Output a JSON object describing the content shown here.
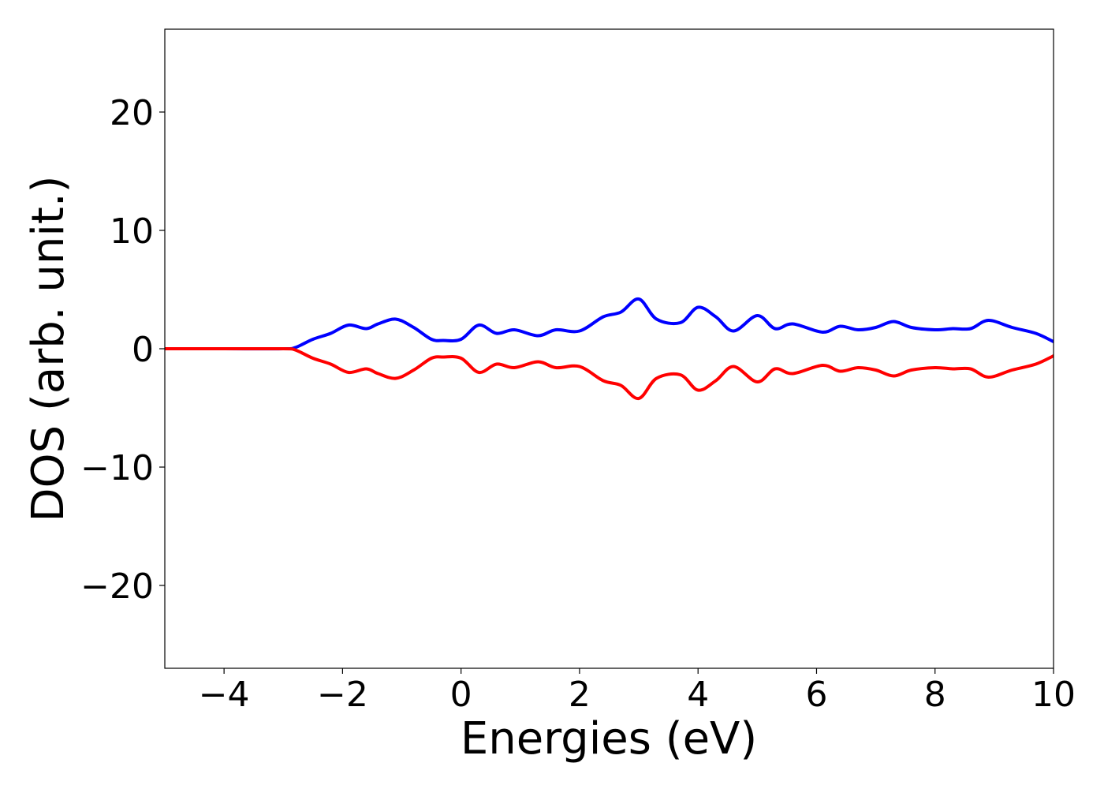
{
  "chart_data": {
    "type": "line",
    "xlabel": "Energies (eV)",
    "ylabel": "DOS (arb. unit.)",
    "xlim": [
      -5,
      10
    ],
    "ylim": [
      -27,
      27
    ],
    "xticks": [
      -4,
      -2,
      0,
      2,
      4,
      6,
      8,
      10
    ],
    "xtick_labels": [
      "−4",
      "−2",
      "0",
      "2",
      "4",
      "6",
      "8",
      "10"
    ],
    "yticks": [
      20,
      10,
      0,
      -10,
      -20
    ],
    "ytick_labels": [
      "20",
      "10",
      "0",
      "−10",
      "−20"
    ],
    "grid": false,
    "series": [
      {
        "color": "#0000ff",
        "x": [
          -5,
          -4,
          -3,
          -2.8,
          -2.5,
          -2.2,
          -1.9,
          -1.6,
          -1.4,
          -1.1,
          -0.8,
          -0.5,
          -0.3,
          0,
          0.3,
          0.6,
          0.9,
          1.3,
          1.6,
          2,
          2.4,
          2.7,
          3,
          3.3,
          3.7,
          4,
          4.3,
          4.6,
          5,
          5.3,
          5.6,
          6.1,
          6.4,
          6.7,
          7,
          7.3,
          7.6,
          8,
          8.3,
          8.6,
          8.9,
          9.3,
          9.7,
          10
        ],
        "y": [
          0,
          0,
          0,
          0.1,
          0.8,
          1.3,
          2.0,
          1.7,
          2.1,
          2.5,
          1.8,
          0.8,
          0.7,
          0.8,
          2.0,
          1.3,
          1.6,
          1.1,
          1.6,
          1.5,
          2.7,
          3.1,
          4.2,
          2.5,
          2.2,
          3.5,
          2.7,
          1.5,
          2.8,
          1.7,
          2.1,
          1.4,
          1.9,
          1.6,
          1.8,
          2.3,
          1.8,
          1.6,
          1.7,
          1.7,
          2.4,
          1.8,
          1.3,
          0.6
        ]
      },
      {
        "color": "#ff0000",
        "x": [
          -5,
          -4,
          -3,
          -2.8,
          -2.5,
          -2.2,
          -1.9,
          -1.6,
          -1.4,
          -1.1,
          -0.8,
          -0.5,
          -0.3,
          0,
          0.3,
          0.6,
          0.9,
          1.3,
          1.6,
          2,
          2.4,
          2.7,
          3,
          3.3,
          3.7,
          4,
          4.3,
          4.6,
          5,
          5.3,
          5.6,
          6.1,
          6.4,
          6.7,
          7,
          7.3,
          7.6,
          8,
          8.3,
          8.6,
          8.9,
          9.3,
          9.7,
          10
        ],
        "y": [
          0,
          0,
          0,
          -0.1,
          -0.8,
          -1.3,
          -2.0,
          -1.7,
          -2.1,
          -2.5,
          -1.8,
          -0.8,
          -0.7,
          -0.8,
          -2.0,
          -1.3,
          -1.6,
          -1.1,
          -1.6,
          -1.5,
          -2.7,
          -3.1,
          -4.2,
          -2.5,
          -2.2,
          -3.5,
          -2.7,
          -1.5,
          -2.8,
          -1.7,
          -2.1,
          -1.4,
          -1.9,
          -1.6,
          -1.8,
          -2.3,
          -1.8,
          -1.6,
          -1.7,
          -1.7,
          -2.4,
          -1.8,
          -1.3,
          -0.6
        ]
      }
    ]
  }
}
